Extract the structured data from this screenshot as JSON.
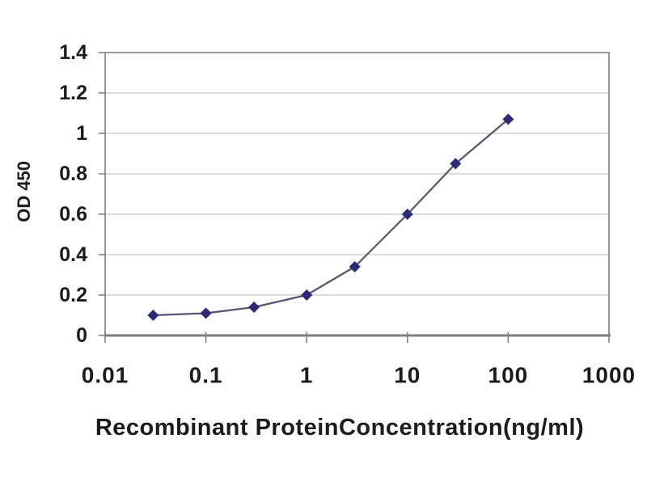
{
  "page": {
    "background_color": "#fefefe",
    "text_color": "#1c1c1c"
  },
  "colors": {
    "axis": "#7f7f7f",
    "grid": "#c9c9c9",
    "text": "#1c1c1c",
    "marker": "#2a2a78",
    "line": "#55556e"
  },
  "chart_data": {
    "type": "line",
    "title": "",
    "xlabel": "Recombinant ProteinConcentration(ng/ml)",
    "ylabel": "OD 450",
    "x_scale": "log",
    "xlim": [
      0.01,
      1000
    ],
    "ylim": [
      0,
      1.4
    ],
    "x_ticks": [
      0.01,
      0.1,
      1,
      10,
      100,
      1000
    ],
    "x_tick_labels": [
      "0.01",
      "0.1",
      "1",
      "10",
      "100",
      "1000"
    ],
    "y_ticks": [
      0,
      0.2,
      0.4,
      0.6,
      0.8,
      1,
      1.2,
      1.4
    ],
    "y_tick_labels": [
      "0",
      "0.2",
      "0.4",
      "0.6",
      "0.8",
      "1",
      "1.2",
      "1.4"
    ],
    "grid": "horizontal",
    "legend": "none",
    "series": [
      {
        "name": "OD 450",
        "marker": "diamond",
        "marker_color": "#2a2a78",
        "line_color": "#55556e",
        "x": [
          0.03,
          0.1,
          0.3,
          1,
          3,
          10,
          30,
          100
        ],
        "y": [
          0.1,
          0.11,
          0.14,
          0.2,
          0.34,
          0.6,
          0.85,
          1.07
        ]
      }
    ]
  }
}
